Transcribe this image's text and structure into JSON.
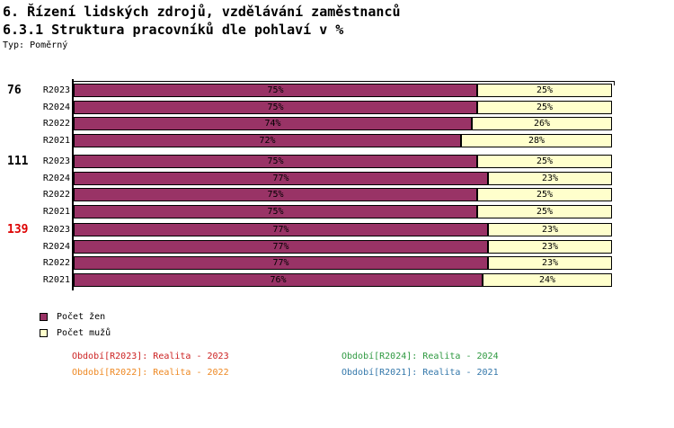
{
  "header": {
    "title_line1": "6. Řízení lidských zdrojů, vzdělávání zaměstnanců",
    "title_line2": "6.3.1 Struktura pracovníků dle pohlaví v %",
    "type_label": "Typ: Poměrný"
  },
  "colors": {
    "women": "#993366",
    "men": "#FFFFCC",
    "axis": "#000000",
    "group_139_label": "#DD0000",
    "group_default_label": "#000000"
  },
  "chart_data": {
    "type": "bar",
    "orientation": "horizontal-stacked",
    "value_unit": "%",
    "xlim": [
      0,
      100
    ],
    "series_names": [
      "Počet žen",
      "Počet mužů"
    ],
    "groups": [
      {
        "label": "76",
        "label_color": "#000000",
        "rows": [
          {
            "period": "R2023",
            "women_pct": 75,
            "men_pct": 25
          },
          {
            "period": "R2024",
            "women_pct": 75,
            "men_pct": 25
          },
          {
            "period": "R2022",
            "women_pct": 74,
            "men_pct": 26
          },
          {
            "period": "R2021",
            "women_pct": 72,
            "men_pct": 28
          }
        ]
      },
      {
        "label": "111",
        "label_color": "#000000",
        "rows": [
          {
            "period": "R2023",
            "women_pct": 75,
            "men_pct": 25
          },
          {
            "period": "R2024",
            "women_pct": 77,
            "men_pct": 23
          },
          {
            "period": "R2022",
            "women_pct": 75,
            "men_pct": 25
          },
          {
            "period": "R2021",
            "women_pct": 75,
            "men_pct": 25
          }
        ]
      },
      {
        "label": "139",
        "label_color": "#DD0000",
        "rows": [
          {
            "period": "R2023",
            "women_pct": 77,
            "men_pct": 23
          },
          {
            "period": "R2024",
            "women_pct": 77,
            "men_pct": 23
          },
          {
            "period": "R2022",
            "women_pct": 77,
            "men_pct": 23
          },
          {
            "period": "R2021",
            "women_pct": 76,
            "men_pct": 24
          }
        ]
      }
    ]
  },
  "legend": {
    "items": [
      {
        "label": "Počet žen",
        "color": "#993366"
      },
      {
        "label": "Počet mužů",
        "color": "#FFFFCC"
      }
    ]
  },
  "footer": {
    "items": [
      {
        "label": "Období[R2023]: Realita - 2023",
        "color": "#CC2222"
      },
      {
        "label": "Období[R2024]: Realita - 2024",
        "color": "#2E9940"
      },
      {
        "label": "Období[R2022]: Realita - 2022",
        "color": "#EE8822"
      },
      {
        "label": "Období[R2021]: Realita - 2021",
        "color": "#3377AA"
      }
    ]
  }
}
